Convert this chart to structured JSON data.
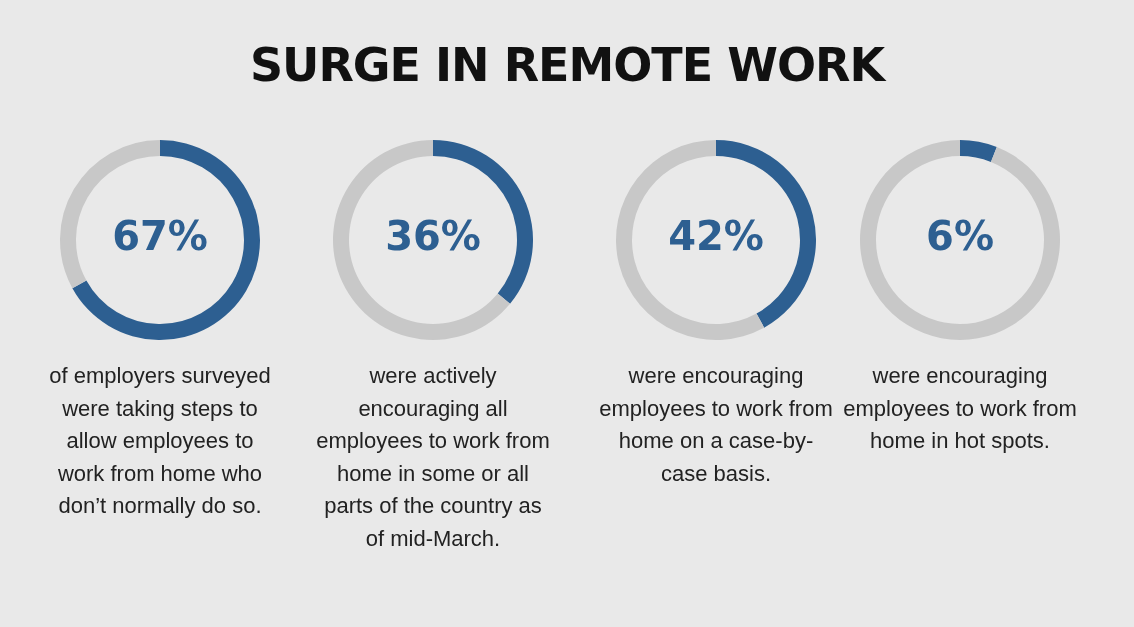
{
  "chart_data": [
    {
      "type": "donut",
      "title": "SURGE IN REMOTE WORK",
      "categories": [
        null,
        null
      ],
      "values": [
        67,
        33
      ],
      "colors": [
        "#2d5f91",
        "#c8c8c8"
      ],
      "value_labels": [
        "67%",
        null
      ],
      "annotations": [
        "of employers surveyed were taking steps to allow employees to work from home who don’t normally do so."
      ]
    },
    {
      "type": "donut",
      "categories": [
        null,
        null
      ],
      "values": [
        36,
        64
      ],
      "colors": [
        "#2d5f91",
        "#c8c8c8"
      ],
      "value_labels": [
        "36%",
        null
      ],
      "annotations": [
        "were actively encouraging all employees to work from home in some or all parts of the country as of mid-March."
      ]
    },
    {
      "type": "donut",
      "categories": [
        null,
        null
      ],
      "values": [
        42,
        58
      ],
      "colors": [
        "#2d5f91",
        "#c8c8c8"
      ],
      "value_labels": [
        "42%",
        null
      ],
      "annotations": [
        "were encouraging employees to work from home on a case-by-case basis."
      ]
    },
    {
      "type": "donut",
      "categories": [
        null,
        null
      ],
      "values": [
        6,
        94
      ],
      "colors": [
        "#2d5f91",
        "#c8c8c8"
      ],
      "value_labels": [
        "6%",
        null
      ],
      "annotations": [
        "were encouraging employees to work from home in hot spots."
      ]
    }
  ]
}
